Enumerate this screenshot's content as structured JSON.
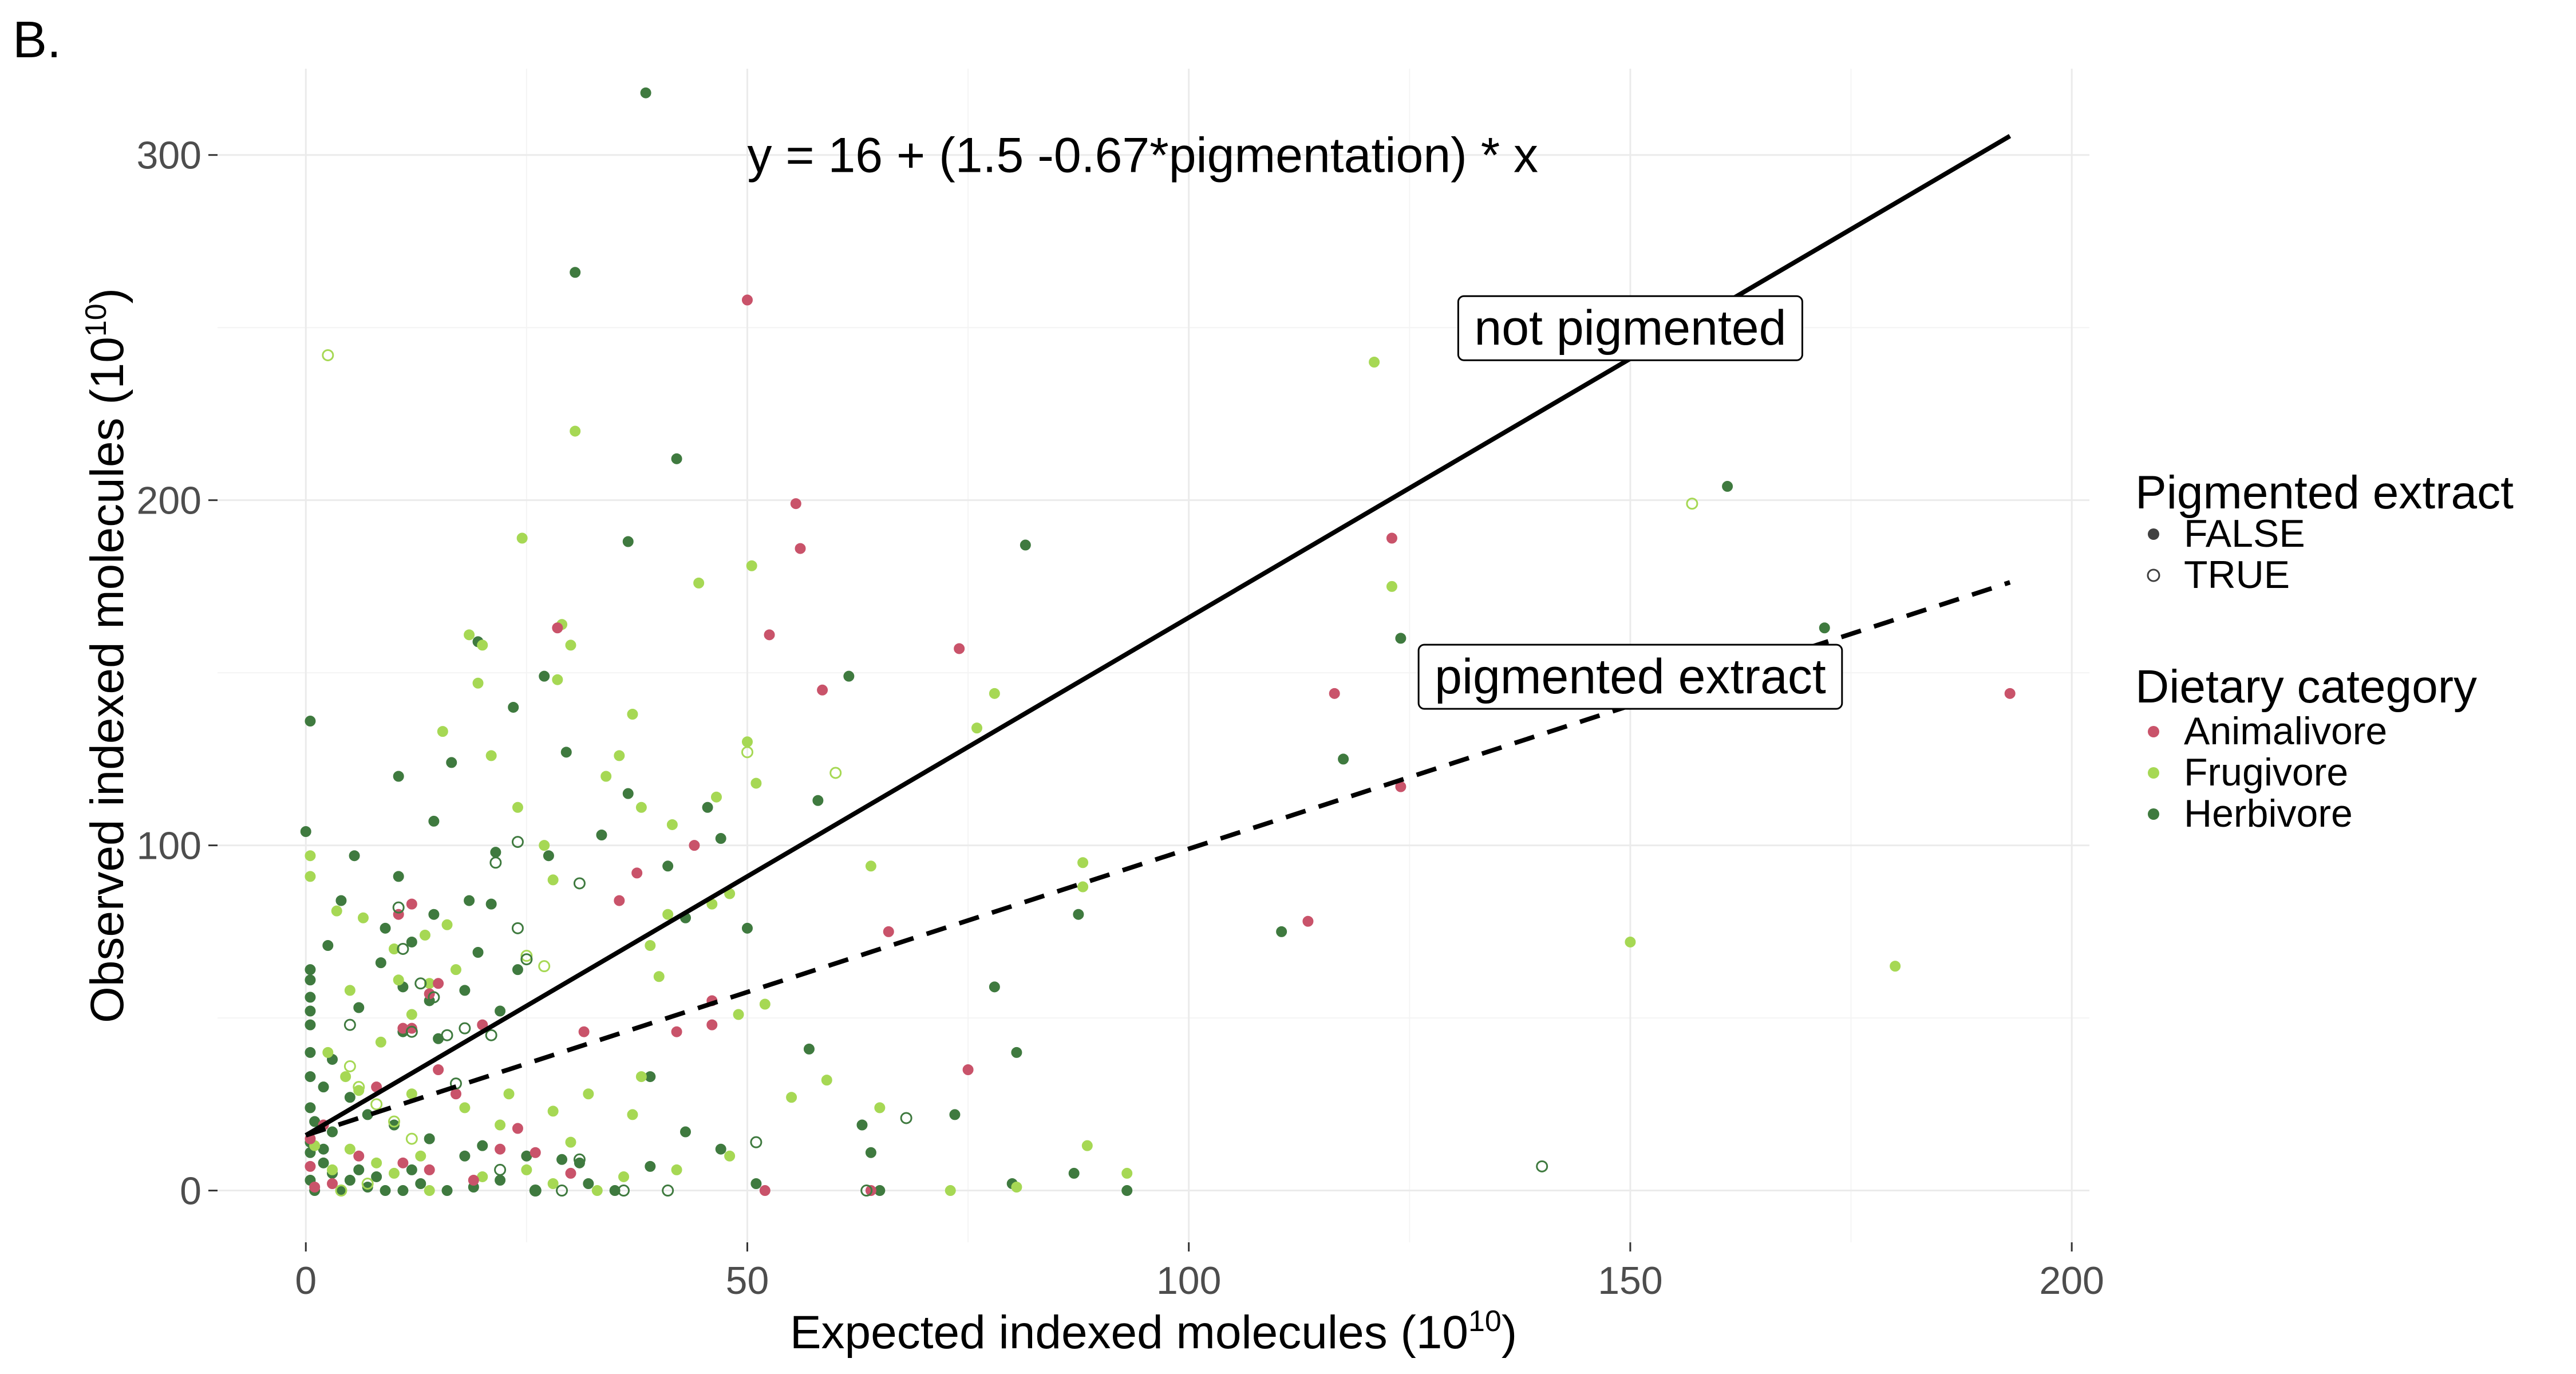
{
  "panel_label": "B.",
  "chart_data": {
    "type": "scatter",
    "xlabel": "Expected indexed molecules (10",
    "xlabel_sup": "10",
    "xlabel_close": ")",
    "ylabel": "Observed indexed molecules (10",
    "ylabel_sup": "10",
    "ylabel_close": ")",
    "xlim": [
      -10,
      202
    ],
    "ylim": [
      -15,
      325
    ],
    "x_ticks": [
      0,
      50,
      100,
      150,
      200
    ],
    "y_ticks": [
      0,
      100,
      200,
      300
    ],
    "x_tick_labels": [
      "0",
      "50",
      "100",
      "150",
      "200"
    ],
    "y_tick_labels": [
      "0",
      "100",
      "200",
      "300"
    ],
    "grid": true,
    "equation": "y = 16 + (1.5 -0.67*pigmentation) * x",
    "lines": [
      {
        "label": "not pigmented",
        "intercept": 16,
        "slope": 1.5,
        "style": "solid",
        "x_range": [
          0,
          193
        ]
      },
      {
        "label": "pigmented extract",
        "intercept": 16,
        "slope": 0.83,
        "style": "dashed",
        "x_range": [
          0,
          193
        ]
      }
    ],
    "line_labels": [
      {
        "text": "not pigmented",
        "x": 150,
        "y": 250
      },
      {
        "text": "pigmented extract",
        "x": 150,
        "y": 149
      }
    ],
    "legend": {
      "placement": "right",
      "groups": [
        {
          "title": "Pigmented extract",
          "entries": [
            {
              "label": "FALSE",
              "marker": "filled"
            },
            {
              "label": "TRUE",
              "marker": "open"
            }
          ]
        },
        {
          "title": "Dietary category",
          "entries": [
            {
              "label": "Animalivore",
              "color": "#c9536a"
            },
            {
              "label": "Frugivore",
              "color": "#a6d854"
            },
            {
              "label": "Herbivore",
              "color": "#3f7a3f"
            }
          ]
        }
      ]
    },
    "colors": {
      "Animalivore": "#c9536a",
      "Frugivore": "#a6d854",
      "Herbivore": "#3f7a3f",
      "FALSE": "#404040",
      "TRUE": "#404040"
    },
    "series": [
      {
        "name": "Herbivore",
        "pigmented": false,
        "points": [
          [
            38.5,
            318
          ],
          [
            30.5,
            266
          ],
          [
            42,
            212
          ],
          [
            36.5,
            188
          ],
          [
            81.5,
            187
          ],
          [
            19.5,
            159
          ],
          [
            23.5,
            140
          ],
          [
            27,
            149
          ],
          [
            0.5,
            136
          ],
          [
            29.5,
            127
          ],
          [
            16.5,
            124
          ],
          [
            36.5,
            115
          ],
          [
            41,
            94
          ],
          [
            21.5,
            98
          ],
          [
            27.5,
            97
          ],
          [
            58,
            113
          ],
          [
            61.5,
            149
          ],
          [
            0,
            104
          ],
          [
            10.5,
            120
          ],
          [
            45.5,
            111
          ],
          [
            47,
            102
          ],
          [
            14.5,
            107
          ],
          [
            33.5,
            103
          ],
          [
            5.5,
            97
          ],
          [
            10.5,
            91
          ],
          [
            18.5,
            84
          ],
          [
            4,
            84
          ],
          [
            21,
            83
          ],
          [
            14.5,
            80
          ],
          [
            9,
            76
          ],
          [
            12,
            72
          ],
          [
            19.5,
            69
          ],
          [
            2.5,
            71
          ],
          [
            8.5,
            66
          ],
          [
            11,
            59
          ],
          [
            14,
            55
          ],
          [
            6,
            53
          ],
          [
            0.5,
            64
          ],
          [
            0.5,
            56
          ],
          [
            18,
            58
          ],
          [
            22,
            52
          ],
          [
            24,
            64
          ],
          [
            11,
            46
          ],
          [
            15,
            44
          ],
          [
            0.5,
            40
          ],
          [
            3,
            38
          ],
          [
            0.5,
            33
          ],
          [
            2,
            30
          ],
          [
            5,
            27
          ],
          [
            0.5,
            24
          ],
          [
            1,
            20
          ],
          [
            3,
            17
          ],
          [
            7,
            22
          ],
          [
            10,
            19
          ],
          [
            14,
            15
          ],
          [
            20,
            13
          ],
          [
            25,
            10
          ],
          [
            29,
            9
          ],
          [
            31,
            8
          ],
          [
            39,
            7
          ],
          [
            0.5,
            11
          ],
          [
            2,
            8
          ],
          [
            3,
            5
          ],
          [
            5,
            3
          ],
          [
            7,
            1
          ],
          [
            9,
            0
          ],
          [
            1,
            0
          ],
          [
            0.5,
            3
          ],
          [
            4,
            0
          ],
          [
            6,
            6
          ],
          [
            8,
            4
          ],
          [
            11,
            0
          ],
          [
            13,
            2
          ],
          [
            16,
            0
          ],
          [
            19,
            1
          ],
          [
            22,
            3
          ],
          [
            26,
            0
          ],
          [
            32,
            2
          ],
          [
            35,
            0
          ],
          [
            18,
            10
          ],
          [
            12,
            6
          ],
          [
            0.5,
            14
          ],
          [
            2,
            12
          ],
          [
            57,
            41
          ],
          [
            63,
            19
          ],
          [
            64,
            11
          ],
          [
            65,
            0
          ],
          [
            73.5,
            22
          ],
          [
            78,
            59
          ],
          [
            80.5,
            40
          ],
          [
            80,
            2
          ],
          [
            87,
            5
          ],
          [
            87.5,
            80
          ],
          [
            93,
            0
          ],
          [
            110.5,
            75
          ],
          [
            117.5,
            125
          ],
          [
            124,
            160
          ],
          [
            161,
            204
          ],
          [
            172,
            163
          ],
          [
            39,
            33
          ],
          [
            43,
            79
          ],
          [
            51,
            2
          ],
          [
            43,
            17
          ],
          [
            47,
            12
          ],
          [
            50,
            76
          ],
          [
            0.5,
            61
          ],
          [
            0.5,
            52
          ],
          [
            0.5,
            48
          ]
        ]
      },
      {
        "name": "Frugivore",
        "pigmented": false,
        "points": [
          [
            30.5,
            220
          ],
          [
            50.5,
            181
          ],
          [
            18.5,
            161
          ],
          [
            29,
            164
          ],
          [
            24.5,
            189
          ],
          [
            28.5,
            148
          ],
          [
            20,
            158
          ],
          [
            30,
            158
          ],
          [
            37,
            138
          ],
          [
            44.5,
            176
          ],
          [
            41.5,
            106
          ],
          [
            21,
            126
          ],
          [
            34,
            120
          ],
          [
            35.5,
            126
          ],
          [
            19.5,
            147
          ],
          [
            38,
            111
          ],
          [
            15.5,
            133
          ],
          [
            46.5,
            114
          ],
          [
            50,
            130
          ],
          [
            51,
            118
          ],
          [
            0.5,
            97
          ],
          [
            0.5,
            91
          ],
          [
            3.5,
            81
          ],
          [
            6.5,
            79
          ],
          [
            10,
            70
          ],
          [
            13.5,
            74
          ],
          [
            17,
            64
          ],
          [
            10.5,
            61
          ],
          [
            5,
            58
          ],
          [
            12,
            51
          ],
          [
            8.5,
            43
          ],
          [
            2.5,
            40
          ],
          [
            4.5,
            33
          ],
          [
            6,
            29
          ],
          [
            12,
            28
          ],
          [
            18,
            24
          ],
          [
            23,
            28
          ],
          [
            28,
            23
          ],
          [
            32,
            28
          ],
          [
            38,
            33
          ],
          [
            37,
            22
          ],
          [
            48,
            10
          ],
          [
            42,
            6
          ],
          [
            55,
            27
          ],
          [
            59,
            32
          ],
          [
            65,
            24
          ],
          [
            64,
            94
          ],
          [
            76,
            134
          ],
          [
            78,
            144
          ],
          [
            88,
            95
          ],
          [
            88,
            88
          ],
          [
            88.5,
            13
          ],
          [
            93,
            5
          ],
          [
            73,
            0
          ],
          [
            80.5,
            1
          ],
          [
            121,
            240
          ],
          [
            123,
            175
          ],
          [
            150,
            72
          ],
          [
            180,
            65
          ],
          [
            40,
            62
          ],
          [
            39,
            71
          ],
          [
            41,
            80
          ],
          [
            46,
            83
          ],
          [
            48,
            86
          ],
          [
            49,
            51
          ],
          [
            52,
            54
          ],
          [
            27,
            100
          ],
          [
            28,
            90
          ],
          [
            24,
            111
          ],
          [
            14,
            60
          ],
          [
            16,
            77
          ],
          [
            5,
            12
          ],
          [
            8,
            8
          ],
          [
            10,
            5
          ],
          [
            13,
            10
          ],
          [
            14,
            0
          ],
          [
            20,
            4
          ],
          [
            25,
            6
          ],
          [
            28,
            2
          ],
          [
            33,
            0
          ],
          [
            36,
            4
          ],
          [
            30,
            14
          ],
          [
            22,
            19
          ],
          [
            1,
            13
          ],
          [
            3,
            6
          ]
        ]
      },
      {
        "name": "Animalivore",
        "pigmented": false,
        "points": [
          [
            50,
            258
          ],
          [
            55.5,
            199
          ],
          [
            56,
            186
          ],
          [
            52.5,
            161
          ],
          [
            28.5,
            163
          ],
          [
            74,
            157
          ],
          [
            58.5,
            145
          ],
          [
            116.5,
            144
          ],
          [
            123,
            189
          ],
          [
            124,
            117
          ],
          [
            193,
            144
          ],
          [
            113.5,
            78
          ],
          [
            66,
            75
          ],
          [
            46,
            55
          ],
          [
            46,
            48
          ],
          [
            42,
            46
          ],
          [
            31.5,
            46
          ],
          [
            35.5,
            84
          ],
          [
            37.5,
            92
          ],
          [
            44,
            100
          ],
          [
            12,
            83
          ],
          [
            10.5,
            80
          ],
          [
            15,
            60
          ],
          [
            14,
            57
          ],
          [
            11,
            47
          ],
          [
            12,
            47
          ],
          [
            20,
            48
          ],
          [
            0.5,
            15
          ],
          [
            2,
            19
          ],
          [
            6,
            10
          ],
          [
            11,
            8
          ],
          [
            14,
            6
          ],
          [
            19,
            3
          ],
          [
            22,
            12
          ],
          [
            24,
            18
          ],
          [
            26,
            11
          ],
          [
            52,
            0
          ],
          [
            75,
            35
          ],
          [
            64,
            0
          ],
          [
            30,
            5
          ],
          [
            17,
            28
          ],
          [
            8,
            30
          ],
          [
            3,
            2
          ],
          [
            1,
            1
          ],
          [
            0.5,
            7
          ],
          [
            15,
            35
          ]
        ]
      },
      {
        "name": "Frugivore",
        "pigmented": true,
        "points": [
          [
            2.5,
            242
          ],
          [
            157,
            199
          ],
          [
            50,
            127
          ],
          [
            60,
            121
          ],
          [
            5,
            36
          ],
          [
            6,
            30
          ],
          [
            8,
            25
          ],
          [
            10,
            20
          ],
          [
            12,
            15
          ],
          [
            25,
            68
          ],
          [
            27,
            65
          ],
          [
            4,
            0
          ],
          [
            7,
            2
          ]
        ]
      },
      {
        "name": "Herbivore",
        "pigmented": true,
        "points": [
          [
            31,
            89
          ],
          [
            21.5,
            95
          ],
          [
            24,
            101
          ],
          [
            24,
            76
          ],
          [
            25,
            67
          ],
          [
            10.5,
            82
          ],
          [
            11,
            70
          ],
          [
            14.5,
            56
          ],
          [
            16,
            45
          ],
          [
            21,
            45
          ],
          [
            12,
            46
          ],
          [
            17,
            31
          ],
          [
            22,
            6
          ],
          [
            26,
            0
          ],
          [
            29,
            0
          ],
          [
            31,
            9
          ],
          [
            36,
            0
          ],
          [
            41,
            0
          ],
          [
            51,
            14
          ],
          [
            68,
            21
          ],
          [
            63.5,
            0
          ],
          [
            140,
            7
          ],
          [
            18,
            47
          ],
          [
            5,
            48
          ],
          [
            13,
            60
          ]
        ]
      }
    ]
  }
}
